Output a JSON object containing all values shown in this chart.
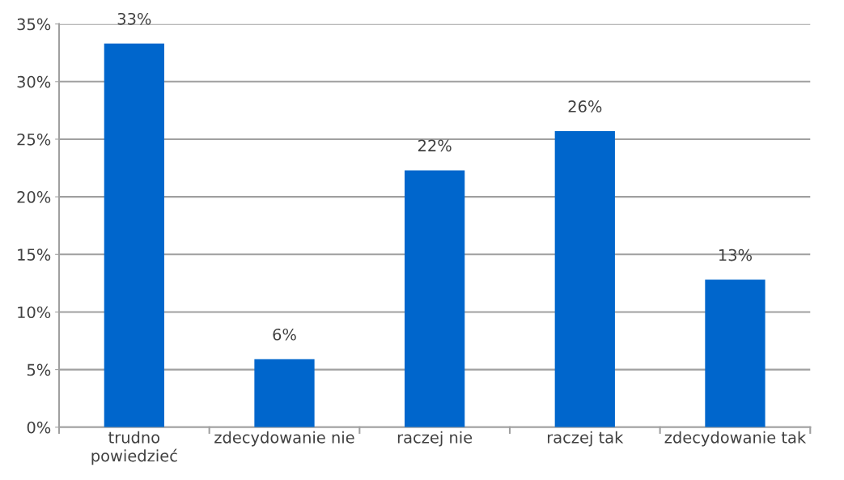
{
  "chart_data": {
    "type": "bar",
    "categories": [
      "trudno\npowiedzieć",
      "zdecydowanie nie",
      "raczej nie",
      "raczej tak",
      "zdecydowanie tak"
    ],
    "values": [
      33.3,
      5.9,
      22.3,
      25.7,
      12.8
    ],
    "value_labels": [
      "33%",
      "6%",
      "22%",
      "26%",
      "13%"
    ],
    "color": "#0066cc",
    "ylim": [
      0,
      35
    ],
    "yticks": [
      {
        "value": 0,
        "label": "0%"
      },
      {
        "value": 5,
        "label": "5%"
      },
      {
        "value": 10,
        "label": "10%"
      },
      {
        "value": 15,
        "label": "15%"
      },
      {
        "value": 20,
        "label": "20%"
      },
      {
        "value": 25,
        "label": "25%"
      },
      {
        "value": 30,
        "label": "30%"
      },
      {
        "value": 35,
        "label": "35%"
      }
    ],
    "grid": "y",
    "legend": false
  }
}
